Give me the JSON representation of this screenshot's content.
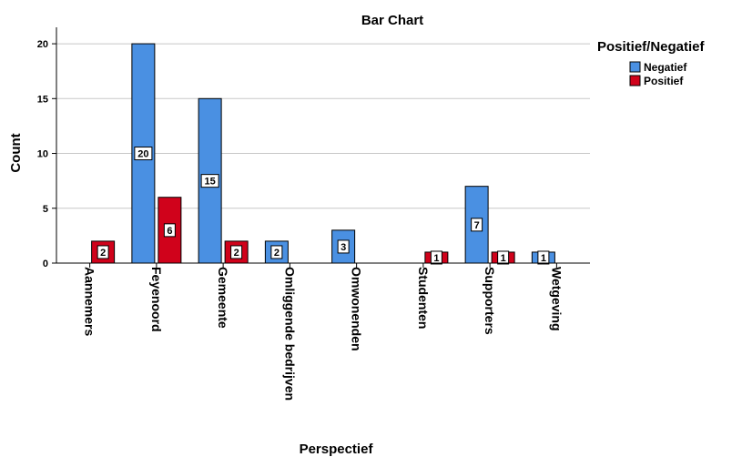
{
  "chart_data": {
    "type": "bar",
    "title": "Bar Chart",
    "xlabel": "Perspectief",
    "ylabel": "Count",
    "ylim": [
      0,
      21.5
    ],
    "yticks": [
      0,
      5,
      10,
      15,
      20
    ],
    "grid": true,
    "legend_title": "Positief/Negatief",
    "legend_position": "top-right",
    "categories": [
      "Aannemers",
      "Feyenoord",
      "Gemeente",
      "Omliggende bedrijven",
      "Omwonenden",
      "Studenten",
      "Supporters",
      "Wetgeving"
    ],
    "series": [
      {
        "name": "Negatief",
        "color": "#4a90e2",
        "values": [
          null,
          20,
          15,
          2,
          3,
          null,
          7,
          1
        ]
      },
      {
        "name": "Positief",
        "color": "#d0021b",
        "values": [
          2,
          6,
          2,
          null,
          null,
          1,
          1,
          null
        ]
      }
    ]
  }
}
